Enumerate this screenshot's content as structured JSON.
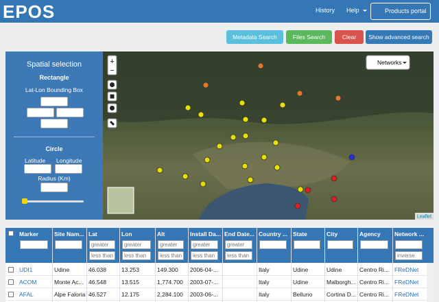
{
  "header": {
    "logo": "EPOS",
    "nav": [
      "History",
      "Help"
    ],
    "button": "Products portal"
  },
  "toolbar": [
    "Metadata Search",
    "Files Search",
    "Clear",
    "Show advanced search"
  ],
  "sidebar": {
    "title": "Spatial selection",
    "rectangle": "Rectangle",
    "bbox_label": "Lat-Lon Bounding Box",
    "circle": "Circle",
    "latitude": "Latitude",
    "longitude": "Longitude",
    "radius": "Radius (Km)"
  },
  "map": {
    "networks": "Networks",
    "zoom_in": "+",
    "zoom_out": "−",
    "attribution": "Leaflet"
  },
  "table": {
    "columns": [
      "Marker",
      "Site Nam...",
      "Lat",
      "Lon",
      "Alt",
      "Install Da...",
      "End Date...",
      "Country ...",
      "State",
      "City",
      "Agency",
      "Network ..."
    ],
    "greater": "greater",
    "less": "less than",
    "inverse": "inverse",
    "rows": [
      [
        "UDI1",
        "Udine",
        "46.038",
        "13.253",
        "149.300",
        "2006-04-...",
        "",
        "Italy",
        "Udine",
        "Udine",
        "Centro Ri...",
        "FReDNet"
      ],
      [
        "ACOM",
        "Monte Ac...",
        "46.548",
        "13.515",
        "1,774.700",
        "2003-07-...",
        "",
        "Italy",
        "Udine",
        "Malborgh...",
        "Centro Ri...",
        "FReDNet"
      ],
      [
        "AFAL",
        "Alpe Faloria",
        "46.527",
        "12.175",
        "2,284.100",
        "2003-06-...",
        "",
        "Italy",
        "Belluno",
        "Cortina D...",
        "Centro Ri...",
        "FReDNet"
      ]
    ]
  }
}
